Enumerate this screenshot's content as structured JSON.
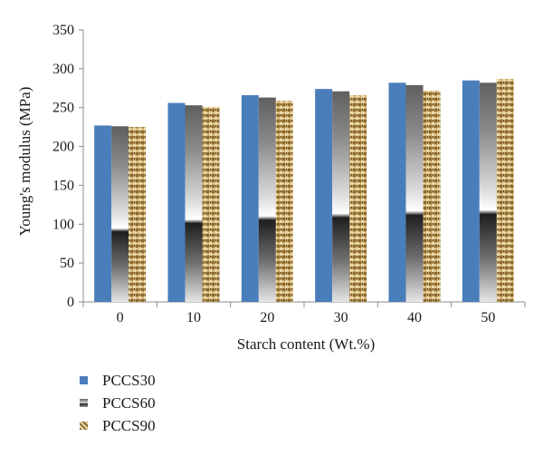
{
  "chart_data": {
    "type": "bar",
    "xlabel": "Starch content (Wt.%)",
    "ylabel": "Young's modulus (MPa)",
    "ylim": [
      0,
      350
    ],
    "yticks": [
      0,
      50,
      100,
      150,
      200,
      250,
      300,
      350
    ],
    "categories": [
      "0",
      "10",
      "20",
      "30",
      "40",
      "50"
    ],
    "series": [
      {
        "name": "PCCS30",
        "values": [
          227,
          256,
          266,
          274,
          282,
          285
        ]
      },
      {
        "name": "PCCS60",
        "values": [
          226,
          253,
          263,
          271,
          279,
          282
        ]
      },
      {
        "name": "PCCS90",
        "values": [
          225,
          251,
          259,
          266,
          272,
          287
        ]
      }
    ],
    "grid": false,
    "legend_position": "bottom-left",
    "colors": {
      "PCCS30": "#4a7ebb",
      "PCCS60": "#6e6e6e",
      "PCCS90": "#b08a4a"
    }
  }
}
